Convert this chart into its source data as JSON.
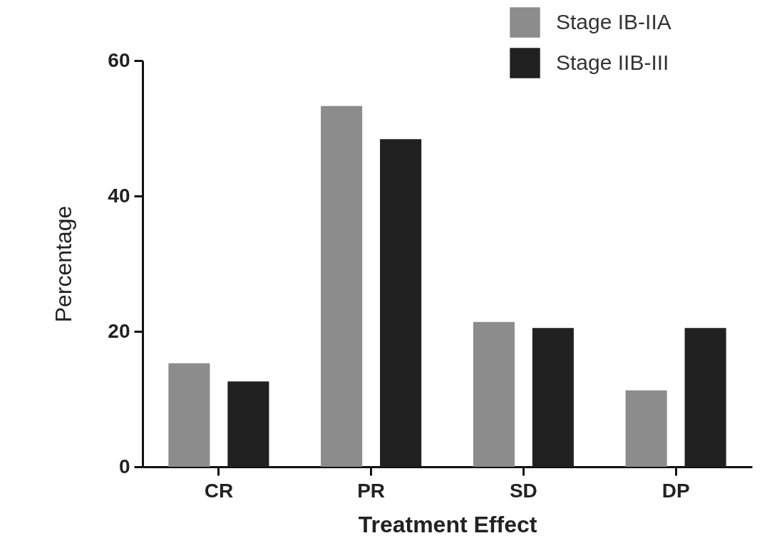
{
  "chart_data": {
    "type": "bar",
    "xlabel": "Treatment Effect",
    "ylabel": "Percentage",
    "categories": [
      "CR",
      "PR",
      "SD",
      "DP"
    ],
    "series": [
      {
        "name": "Stage IB-IIA",
        "color": "#8c8c8c",
        "values": [
          15.3,
          53.3,
          21.4,
          11.3
        ]
      },
      {
        "name": "Stage IIB-III",
        "color": "#212121",
        "values": [
          12.6,
          48.4,
          20.5,
          20.5
        ]
      }
    ],
    "ylim": [
      0,
      60
    ],
    "yticks": [
      0,
      20,
      40,
      60
    ],
    "grid": false,
    "legend": "top right"
  }
}
